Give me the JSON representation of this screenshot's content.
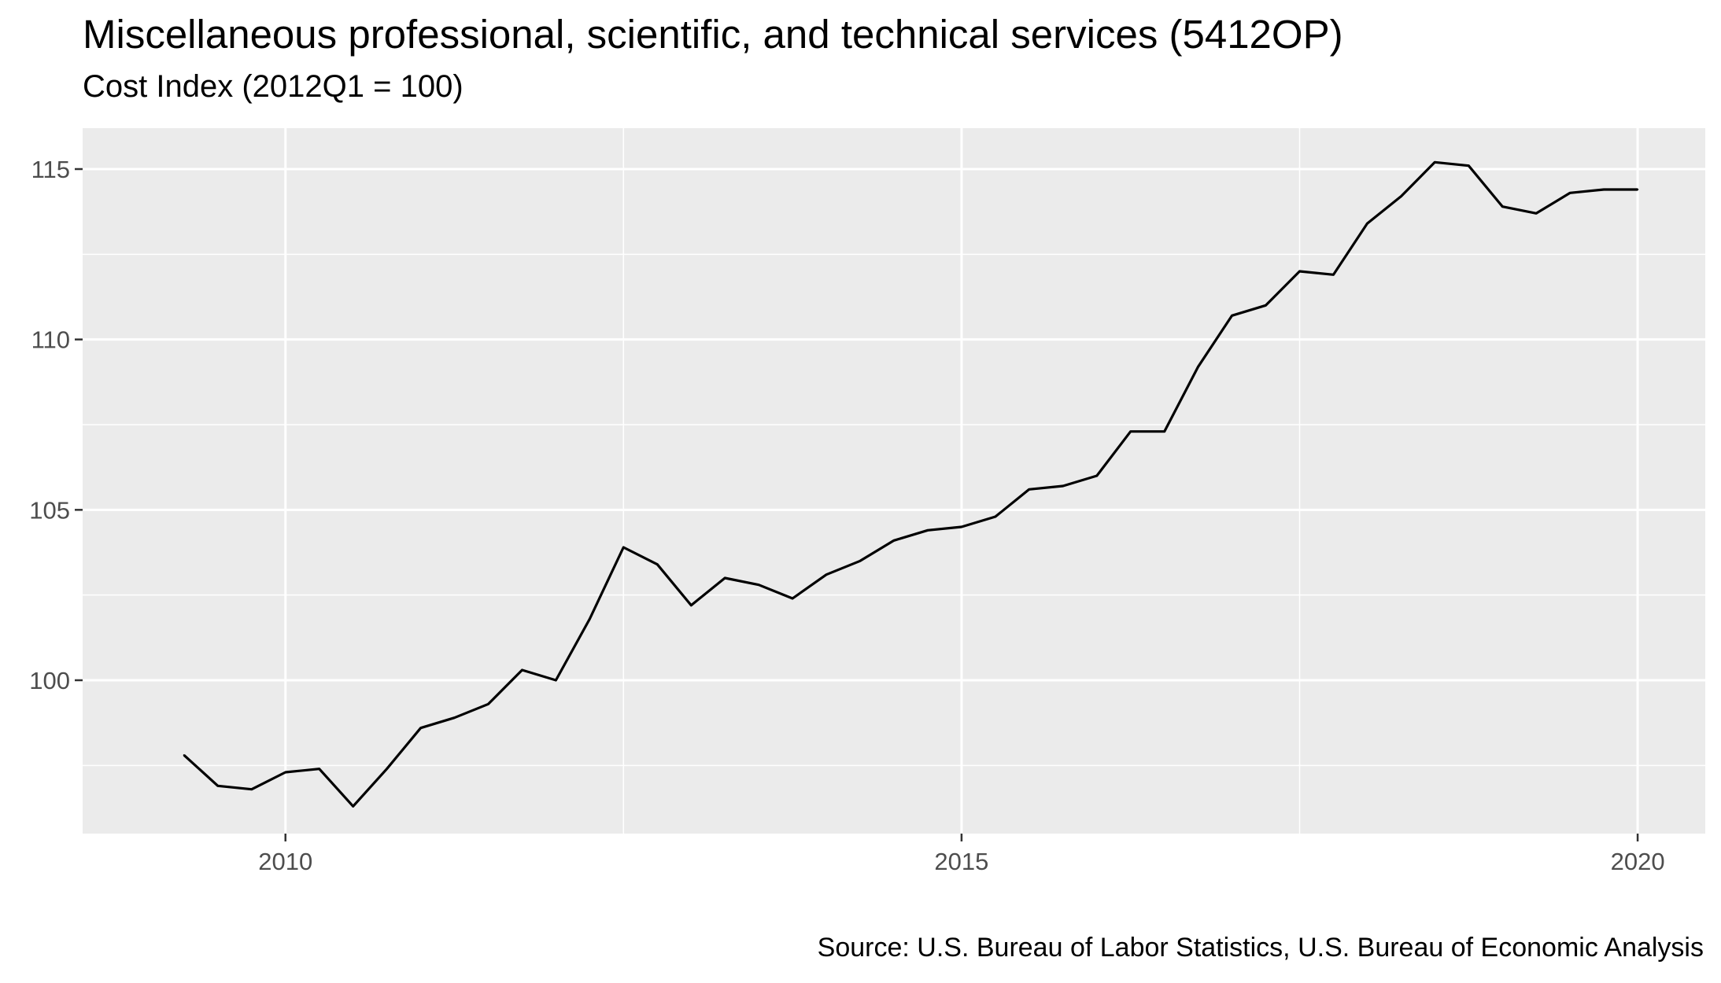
{
  "chart_data": {
    "type": "line",
    "title": "Miscellaneous professional, scientific, and technical services (5412OP)",
    "subtitle": "Cost Index (2012Q1 = 100)",
    "caption": "Source: U.S. Bureau of Labor Statistics, U.S. Bureau of Economic Analysis",
    "xlabel": "",
    "ylabel": "",
    "xlim": [
      2008.5,
      2020.5
    ],
    "ylim": [
      95.5,
      116.2
    ],
    "x_ticks": [
      2010,
      2015,
      2020
    ],
    "x_tick_labels": [
      "2010",
      "2015",
      "2020"
    ],
    "y_ticks": [
      100,
      105,
      110,
      115
    ],
    "y_tick_labels": [
      "100",
      "105",
      "110",
      "115"
    ],
    "grid": true,
    "background": "#ebebeb",
    "line_color": "#000000",
    "series": [
      {
        "x": [
          2009.25,
          2009.5,
          2009.75,
          2010.0,
          2010.25,
          2010.5,
          2010.75,
          2011.0,
          2011.25,
          2011.5,
          2011.75,
          2012.0,
          2012.25,
          2012.5,
          2012.75,
          2013.0,
          2013.25,
          2013.5,
          2013.75,
          2014.0,
          2014.25,
          2014.5,
          2014.75,
          2015.0,
          2015.25,
          2015.5,
          2015.75,
          2016.0,
          2016.25,
          2016.5,
          2016.75,
          2017.0,
          2017.25,
          2017.5,
          2017.75,
          2018.0,
          2018.25,
          2018.5,
          2018.75,
          2019.0,
          2019.25,
          2019.5,
          2019.75,
          2020.0
        ],
        "values": [
          97.8,
          96.9,
          96.8,
          97.3,
          97.4,
          96.3,
          97.4,
          98.6,
          98.9,
          99.3,
          100.3,
          100.0,
          101.8,
          103.9,
          103.4,
          102.2,
          103.0,
          102.8,
          102.4,
          103.1,
          103.5,
          104.1,
          104.4,
          104.5,
          104.8,
          105.6,
          105.7,
          106.0,
          107.3,
          107.3,
          109.2,
          110.7,
          111.0,
          112.0,
          111.9,
          113.4,
          114.2,
          115.2,
          115.1,
          113.9,
          113.7,
          114.3,
          114.4,
          114.4
        ]
      }
    ]
  }
}
